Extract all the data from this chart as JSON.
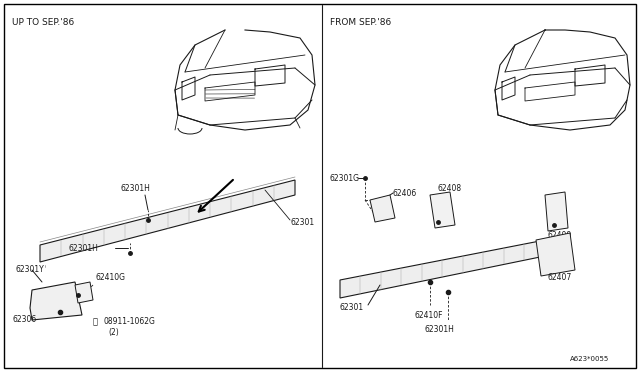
{
  "bg_color": "#ffffff",
  "border_color": "#000000",
  "line_color": "#1a1a1a",
  "fig_width": 6.4,
  "fig_height": 3.72,
  "dpi": 100,
  "title_left": "UP TO SEP.'86",
  "title_right": "FROM SEP.'86",
  "part_number_bottom_right": "A623*0055",
  "font_size_label": 5.5,
  "font_size_title": 6.5,
  "font_size_pn": 5.0
}
